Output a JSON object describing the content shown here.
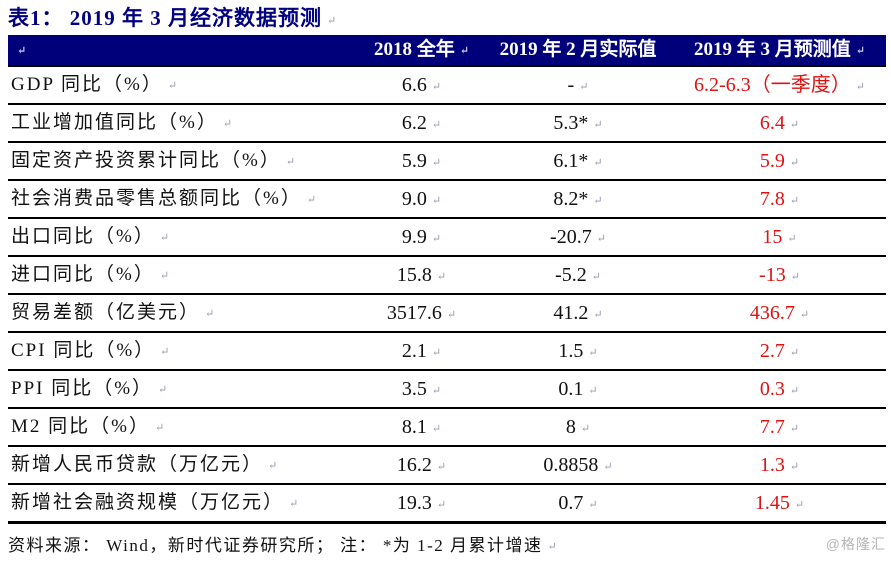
{
  "title": "表1：  2019 年 3 月经济数据预测",
  "icons": {
    "paragraph_mark": "↵"
  },
  "colors": {
    "header_bg": "#00007b",
    "title_navy": "#000080",
    "forecast_red": "#e01111",
    "watermark_gray": "#b5b5b5"
  },
  "table": {
    "headers": [
      "",
      "2018 全年",
      "2019 年 2 月实际值",
      "2019 年 3 月预测值"
    ],
    "rows": [
      {
        "label": "GDP 同比（%）",
        "y2018": "6.6",
        "feb2019": "-",
        "mar2019": "6.2-6.3（一季度）"
      },
      {
        "label": "工业增加值同比（%）",
        "y2018": "6.2",
        "feb2019": "5.3*",
        "mar2019": "6.4"
      },
      {
        "label": "固定资产投资累计同比（%）",
        "y2018": "5.9",
        "feb2019": "6.1*",
        "mar2019": "5.9"
      },
      {
        "label": "社会消费品零售总额同比（%）",
        "y2018": "9.0",
        "feb2019": "8.2*",
        "mar2019": "7.8"
      },
      {
        "label": "出口同比（%）",
        "y2018": "9.9",
        "feb2019": "-20.7",
        "mar2019": "15"
      },
      {
        "label": "进口同比（%）",
        "y2018": "15.8",
        "feb2019": "-5.2",
        "mar2019": "-13"
      },
      {
        "label": "贸易差额（亿美元）",
        "y2018": "3517.6",
        "feb2019": "41.2",
        "mar2019": "436.7"
      },
      {
        "label": "CPI 同比（%）",
        "y2018": "2.1",
        "feb2019": "1.5",
        "mar2019": "2.7"
      },
      {
        "label": "PPI 同比（%）",
        "y2018": "3.5",
        "feb2019": "0.1",
        "mar2019": "0.3"
      },
      {
        "label": "M2 同比（%）",
        "y2018": "8.1",
        "feb2019": "8",
        "mar2019": "7.7"
      },
      {
        "label": "新增人民币贷款（万亿元）",
        "y2018": "16.2",
        "feb2019": "0.8858",
        "mar2019": "1.3"
      },
      {
        "label": "新增社会融资规模（万亿元）",
        "y2018": "19.3",
        "feb2019": "0.7",
        "mar2019": "1.45"
      }
    ]
  },
  "footer": {
    "source_note": "资料来源： Wind，新时代证券研究所； 注： *为 1-2 月累计增速"
  },
  "watermark": "@格隆汇"
}
